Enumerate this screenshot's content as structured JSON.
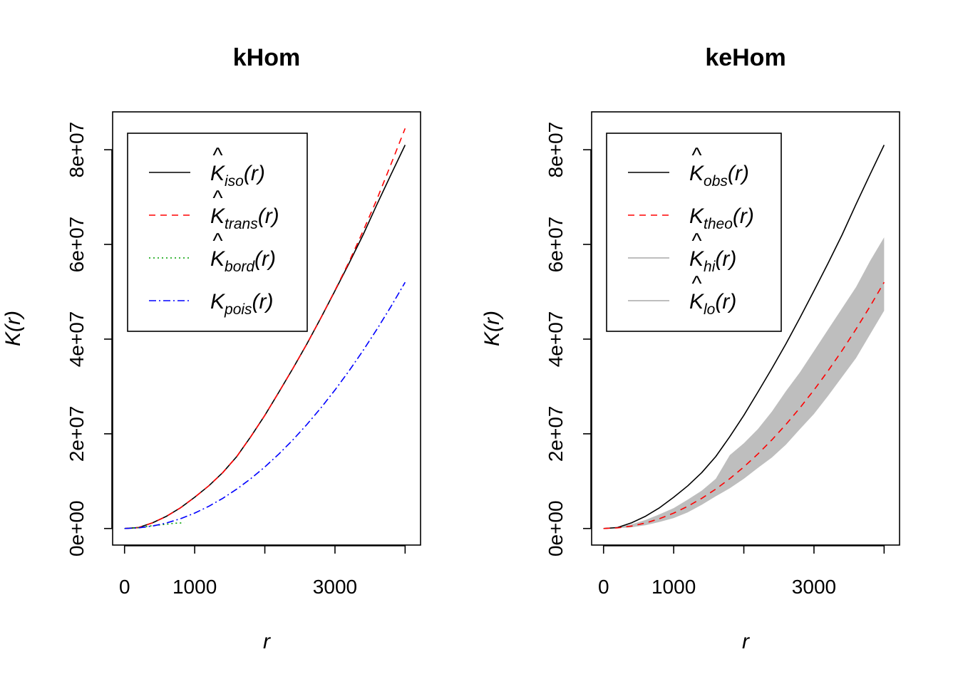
{
  "chart_data": [
    {
      "type": "line",
      "title": "kHom",
      "xlabel": "r",
      "ylabel": "K(r)",
      "xlim": [
        -170,
        4220
      ],
      "ylim": [
        -3500000,
        88000000
      ],
      "x_ticks": [
        0,
        1000,
        2000,
        3000,
        4000
      ],
      "x_tick_labels": [
        "0",
        "1000",
        "",
        "3000",
        ""
      ],
      "y_ticks": [
        0,
        20000000,
        40000000,
        60000000,
        80000000
      ],
      "y_tick_labels": [
        "0e+00",
        "2e+07",
        "4e+07",
        "6e+07",
        "8e+07"
      ],
      "grid": false,
      "legend_position": "top-left",
      "series": [
        {
          "name": "K̂iso(r)",
          "sym": "K",
          "hat": true,
          "sub": "iso",
          "color": "#000000",
          "dash": "none",
          "x": [
            0,
            200,
            400,
            600,
            800,
            1000,
            1200,
            1400,
            1600,
            1800,
            2000,
            2200,
            2400,
            2600,
            2800,
            3000,
            3200,
            3400,
            3600,
            3800,
            4000
          ],
          "y": [
            0,
            200000,
            1200000,
            2600000,
            4400000,
            6600000,
            9000000,
            11800000,
            15200000,
            19400000,
            23900000,
            28800000,
            33800000,
            39000000,
            44500000,
            50200000,
            56000000,
            62000000,
            68500000,
            74800000,
            81000000
          ]
        },
        {
          "name": "K̂trans(r)",
          "sym": "K",
          "hat": true,
          "sub": "trans",
          "color": "#ff0000",
          "dash": "9,7",
          "x": [
            0,
            200,
            400,
            600,
            800,
            1000,
            1200,
            1400,
            1600,
            1800,
            2000,
            2200,
            2400,
            2600,
            2800,
            3000,
            3200,
            3400,
            3600,
            3800,
            4000
          ],
          "y": [
            0,
            200000,
            1200000,
            2600000,
            4400000,
            6600000,
            9000000,
            11800000,
            15200000,
            19400000,
            23900000,
            28800000,
            33800000,
            39000000,
            44500000,
            50300000,
            56300000,
            62800000,
            69600000,
            77000000,
            84500000
          ]
        },
        {
          "name": "K̂bord(r)",
          "sym": "K",
          "hat": true,
          "sub": "bord",
          "color": "#00a000",
          "dash": "2,4",
          "x": [
            0,
            200,
            400,
            600,
            700,
            850
          ],
          "y": [
            0,
            200000,
            600000,
            900000,
            1100000,
            1200000
          ]
        },
        {
          "name": "Kpois(r)",
          "sym": "K",
          "hat": false,
          "sub": "pois",
          "color": "#0000ff",
          "dash": "10,4,2,4",
          "x": [
            0,
            200,
            400,
            600,
            800,
            1000,
            1200,
            1400,
            1600,
            1800,
            2000,
            2200,
            2400,
            2600,
            2800,
            3000,
            3200,
            3400,
            3600,
            3800,
            4000
          ],
          "y": [
            0,
            130000,
            520000,
            1170000,
            2080000,
            3250000,
            4680000,
            6370000,
            8320000,
            10530000,
            13000000,
            15730000,
            18720000,
            21970000,
            25480000,
            29250000,
            33280000,
            37570000,
            42120000,
            46930000,
            52000000
          ]
        }
      ]
    },
    {
      "type": "line",
      "title": "keHom",
      "xlabel": "r",
      "ylabel": "K(r)",
      "xlim": [
        -170,
        4220
      ],
      "ylim": [
        -3500000,
        88000000
      ],
      "x_ticks": [
        0,
        1000,
        2000,
        3000,
        4000
      ],
      "x_tick_labels": [
        "0",
        "1000",
        "",
        "3000",
        ""
      ],
      "y_ticks": [
        0,
        20000000,
        40000000,
        60000000,
        80000000
      ],
      "y_tick_labels": [
        "0e+00",
        "2e+07",
        "4e+07",
        "6e+07",
        "8e+07"
      ],
      "grid": false,
      "legend_position": "top-left",
      "band": {
        "color": "#bebebe",
        "x": [
          0,
          200,
          400,
          600,
          800,
          1000,
          1200,
          1400,
          1600,
          1800,
          2000,
          2200,
          2400,
          2600,
          2800,
          3000,
          3200,
          3400,
          3600,
          3800,
          4000
        ],
        "hi": [
          0,
          250000,
          900000,
          1800000,
          3000000,
          4300000,
          6100000,
          8000000,
          10500000,
          15500000,
          18000000,
          21000000,
          24700000,
          29000000,
          33000000,
          37500000,
          42000000,
          46500000,
          51000000,
          56500000,
          61500000
        ],
        "lo": [
          0,
          60000,
          250000,
          700000,
          1400000,
          2200000,
          3400000,
          5000000,
          6800000,
          8500000,
          10500000,
          12800000,
          15000000,
          17700000,
          21000000,
          24200000,
          28000000,
          32000000,
          36000000,
          41000000,
          46000000
        ]
      },
      "series": [
        {
          "name": "K̂obs(r)",
          "sym": "K",
          "hat": true,
          "sub": "obs",
          "color": "#000000",
          "dash": "none",
          "x": [
            0,
            200,
            400,
            600,
            800,
            1000,
            1200,
            1400,
            1600,
            1800,
            2000,
            2200,
            2400,
            2600,
            2800,
            3000,
            3200,
            3400,
            3600,
            3800,
            4000
          ],
          "y": [
            0,
            200000,
            1200000,
            2600000,
            4400000,
            6600000,
            9000000,
            11800000,
            15200000,
            19400000,
            23900000,
            28800000,
            33800000,
            39000000,
            44500000,
            50200000,
            56000000,
            62000000,
            68500000,
            74800000,
            81000000
          ]
        },
        {
          "name": "Ktheo(r)",
          "sym": "K",
          "hat": false,
          "sub": "theo",
          "color": "#ff0000",
          "dash": "9,7",
          "x": [
            0,
            200,
            400,
            600,
            800,
            1000,
            1200,
            1400,
            1600,
            1800,
            2000,
            2200,
            2400,
            2600,
            2800,
            3000,
            3200,
            3400,
            3600,
            3800,
            4000
          ],
          "y": [
            0,
            130000,
            520000,
            1170000,
            2080000,
            3250000,
            4680000,
            6370000,
            8320000,
            10530000,
            13000000,
            15730000,
            18720000,
            21970000,
            25480000,
            29250000,
            33280000,
            37570000,
            42120000,
            46930000,
            52000000
          ]
        },
        {
          "name": "K̂hi(r)",
          "sym": "K",
          "hat": true,
          "sub": "hi",
          "color": "#bebebe",
          "dash": "none",
          "legend_only": true
        },
        {
          "name": "K̂lo(r)",
          "sym": "K",
          "hat": true,
          "sub": "lo",
          "color": "#bebebe",
          "dash": "none",
          "legend_only": true
        }
      ]
    }
  ]
}
